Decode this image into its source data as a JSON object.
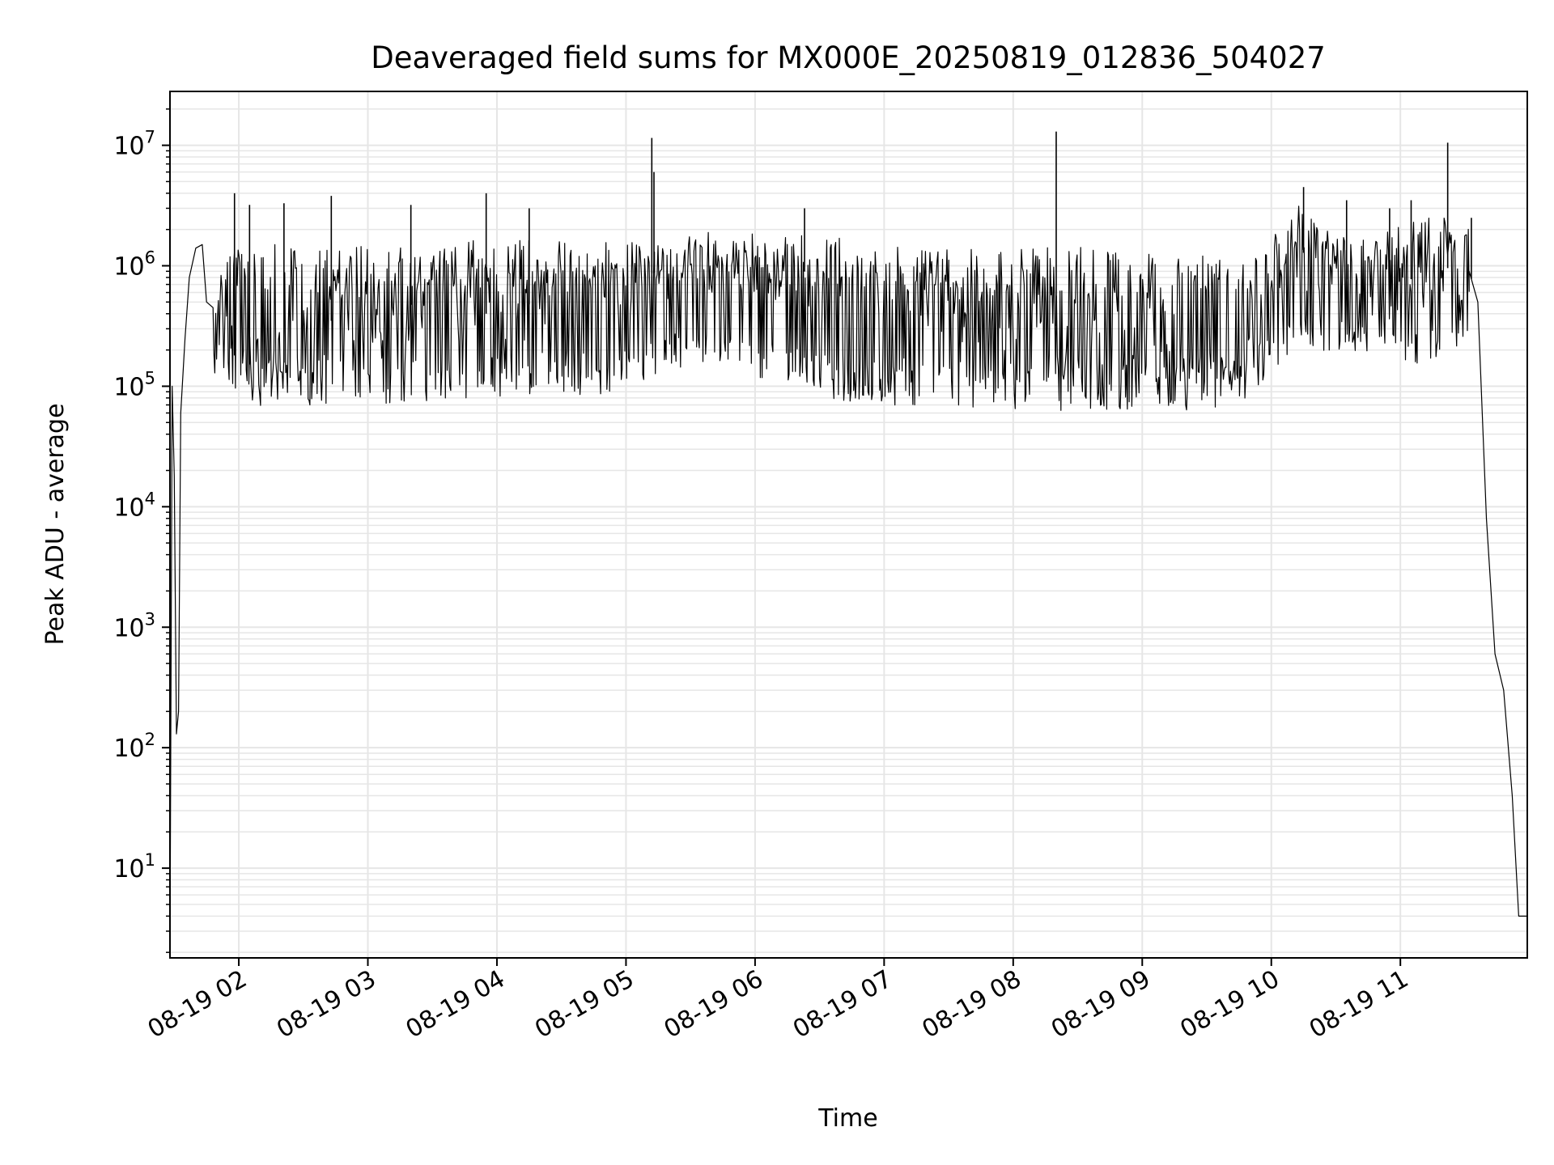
{
  "chart_data": {
    "type": "line",
    "title": "Deaveraged field sums for MX000E_20250819_012836_504027",
    "xlabel": "Time",
    "ylabel": "Peak ADU - average",
    "yscale": "log",
    "ylim": [
      1.8,
      28000000
    ],
    "xlim": [
      "08-19 01:28",
      "08-19 11:59"
    ],
    "grid": true,
    "line_color": "#000000",
    "grid_color": "#e6e6e6",
    "x_ticks": [
      {
        "value": "08-19 02:00",
        "label": "08-19 02"
      },
      {
        "value": "08-19 03:00",
        "label": "08-19 03"
      },
      {
        "value": "08-19 04:00",
        "label": "08-19 04"
      },
      {
        "value": "08-19 05:00",
        "label": "08-19 05"
      },
      {
        "value": "08-19 06:00",
        "label": "08-19 06"
      },
      {
        "value": "08-19 07:00",
        "label": "08-19 07"
      },
      {
        "value": "08-19 08:00",
        "label": "08-19 08"
      },
      {
        "value": "08-19 09:00",
        "label": "08-19 09"
      },
      {
        "value": "08-19 10:00",
        "label": "08-19 10"
      },
      {
        "value": "08-19 11:00",
        "label": "08-19 11"
      }
    ],
    "y_ticks": [
      {
        "value": 10,
        "base": "10",
        "exp": "1"
      },
      {
        "value": 100,
        "base": "10",
        "exp": "2"
      },
      {
        "value": 1000,
        "base": "10",
        "exp": "3"
      },
      {
        "value": 10000,
        "base": "10",
        "exp": "4"
      },
      {
        "value": 100000,
        "base": "10",
        "exp": "5"
      },
      {
        "value": 1000000,
        "base": "10",
        "exp": "6"
      },
      {
        "value": 10000000,
        "base": "10",
        "exp": "7"
      }
    ],
    "series": [
      {
        "x": [
          "08-19 01:28",
          "08-19 01:29",
          "08-19 01:30",
          "08-19 01:31",
          "08-19 01:32",
          "08-19 01:33",
          "08-19 01:35",
          "08-19 01:37",
          "08-19 01:40",
          "08-19 01:43",
          "08-19 01:45",
          "08-19 01:48",
          "08-19 01:50",
          "08-19 01:53",
          "08-19 01:55",
          "08-19 01:58",
          "08-19 02:03",
          "08-19 02:08",
          "08-19 02:20",
          "08-19 02:35",
          "08-19 02:50",
          "08-19 03:10",
          "08-19 03:30",
          "08-19 03:55",
          "08-19 04:20",
          "08-19 04:50",
          "08-19 05:15",
          "08-19 05:30",
          "08-19 05:50",
          "08-19 06:20",
          "08-19 06:50",
          "08-19 07:00",
          "08-19 07:30",
          "08-19 08:00",
          "08-19 08:30",
          "08-19 09:00",
          "08-19 09:30",
          "08-19 09:55",
          "08-19 10:10",
          "08-19 10:30",
          "08-19 10:50",
          "08-19 11:10",
          "08-19 11:25",
          "08-19 11:32",
          "08-19 11:36",
          "08-19 11:40",
          "08-19 11:44",
          "08-19 11:48",
          "08-19 11:52",
          "08-19 11:55",
          "08-19 11:59"
        ],
        "y": [
          2,
          100000,
          18000,
          130,
          200,
          60000,
          250000,
          800000,
          1400000,
          1500000,
          500000,
          450000,
          350000,
          250000,
          200000,
          180000,
          160000,
          140000,
          150000,
          300000,
          400000,
          450000,
          500000,
          400000,
          500000,
          650000,
          900000,
          1000000,
          950000,
          900000,
          850000,
          600000,
          400000,
          350000,
          300000,
          250000,
          200000,
          180000,
          1500000,
          800000,
          700000,
          800000,
          1000000,
          900000,
          500000,
          8000,
          600,
          300,
          40,
          4,
          4
        ],
        "low_envelope_y": [
          null,
          null,
          null,
          null,
          null,
          null,
          null,
          null,
          null,
          null,
          null,
          120000,
          110000,
          100000,
          90000,
          80000,
          75000,
          70000,
          65000,
          70000,
          75000,
          70000,
          75000,
          80000,
          80000,
          85000,
          120000,
          150000,
          120000,
          90000,
          70000,
          70000,
          65000,
          65000,
          60000,
          60000,
          65000,
          70000,
          150000,
          200000,
          180000,
          150000,
          200000,
          150000,
          null,
          null,
          null,
          null,
          null,
          null,
          null
        ],
        "high_envelope_y": [
          null,
          null,
          null,
          null,
          null,
          null,
          null,
          null,
          null,
          null,
          null,
          600000,
          700000,
          1000000,
          1500000,
          1600000,
          1500000,
          1400000,
          1600000,
          1500000,
          1400000,
          1600000,
          1500000,
          1700000,
          1600000,
          1600000,
          1600000,
          1500000,
          1600000,
          1500000,
          1400000,
          1700000,
          1500000,
          1400000,
          1500000,
          1300000,
          1300000,
          1200000,
          3500000,
          1800000,
          1800000,
          2500000,
          2500000,
          2000000,
          null,
          null,
          null,
          null,
          null,
          null,
          null
        ],
        "spikes": [
          {
            "x": "08-19 01:58",
            "y": 4000000
          },
          {
            "x": "08-19 02:05",
            "y": 3200000
          },
          {
            "x": "08-19 02:21",
            "y": 3300000
          },
          {
            "x": "08-19 02:43",
            "y": 3800000
          },
          {
            "x": "08-19 03:20",
            "y": 3200000
          },
          {
            "x": "08-19 03:55",
            "y": 4000000
          },
          {
            "x": "08-19 04:15",
            "y": 3000000
          },
          {
            "x": "08-19 05:12",
            "y": 11500000
          },
          {
            "x": "08-19 05:13",
            "y": 6000000
          },
          {
            "x": "08-19 06:23",
            "y": 3000000
          },
          {
            "x": "08-19 08:20",
            "y": 13000000
          },
          {
            "x": "08-19 10:15",
            "y": 4500000
          },
          {
            "x": "08-19 10:35",
            "y": 3500000
          },
          {
            "x": "08-19 10:55",
            "y": 3000000
          },
          {
            "x": "08-19 11:05",
            "y": 3500000
          },
          {
            "x": "08-19 11:22",
            "y": 10500000
          },
          {
            "x": "08-19 11:33",
            "y": 2500000
          }
        ]
      }
    ]
  }
}
